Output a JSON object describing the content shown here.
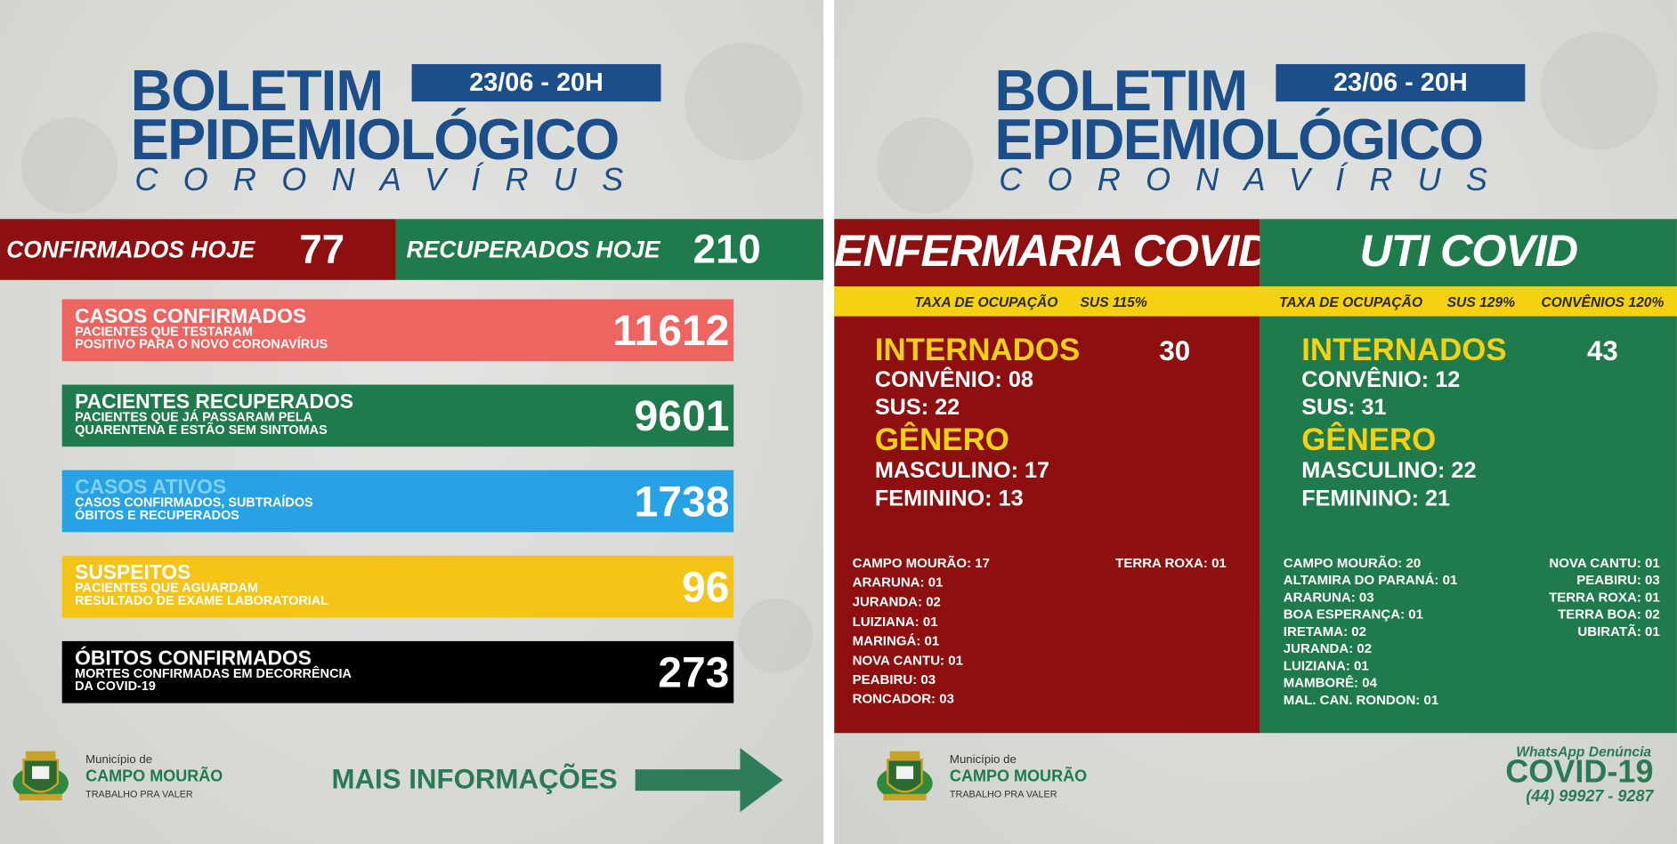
{
  "left": {
    "header": {
      "title": "BOLETIM",
      "title_line2": "EPIDEMIOLÓGICO",
      "subtitle": "CORONAVÍRUS",
      "date": "23/06 - 20H"
    },
    "today": [
      {
        "label": "CONFIRMADOS HOJE",
        "value": 77
      },
      {
        "label": "RECUPERADOS HOJE",
        "value": 210
      }
    ],
    "cards": [
      {
        "title": "CASOS CONFIRMADOS",
        "description": [
          "PACIENTES QUE TESTARAM",
          "POSITIVO PARA O NOVO CORONAVÍRUS"
        ],
        "value": 11612
      },
      {
        "title": "PACIENTES RECUPERADOS",
        "description": [
          "PACIENTES QUE JÁ PASSARAM PELA",
          "QUARENTENA E ESTÃO SEM SINTOMAS"
        ],
        "value": 9601
      },
      {
        "title": "CASOS ATIVOS",
        "description": [
          "CASOS CONFIRMADOS, SUBTRAÍDOS",
          "ÓBITOS E RECUPERADOS"
        ],
        "value": 1738
      },
      {
        "title": "SUSPEITOS",
        "description": [
          "PACIENTES QUE AGUARDAM",
          "RESULTADO DE EXAME LABORATORIAL"
        ],
        "value": 96
      },
      {
        "title": "ÓBITOS CONFIRMADOS",
        "description": [
          "MORTES CONFIRMADAS EM DECORRÊNCIA",
          "DA COVID-19"
        ],
        "value": 273
      }
    ],
    "footer": {
      "municipality_label": "Município de",
      "municipality": "CAMPO MOURÃO",
      "slogan": "TRABALHO PRA VALER",
      "more_info": "MAIS INFORMAÇÕES"
    }
  },
  "right": {
    "header": {
      "title": "BOLETIM",
      "title_line2": "EPIDEMIOLÓGICO",
      "subtitle": "CORONAVÍRUS",
      "date": "23/06 - 20H"
    },
    "wards": [
      {
        "title": "ENFERMARIA COVID",
        "occupancy": [
          "TAXA DE OCUPAÇÃO",
          "SUS 115%"
        ],
        "admitted_label": "INTERNADOS",
        "admitted": 30,
        "admitted_breakdown": [
          "CONVÊNIO: 08",
          "SUS: 22"
        ],
        "gender_label": "GÊNERO",
        "gender": [
          "MASCULINO: 17",
          "FEMININO: 13"
        ],
        "cities": [
          [
            "CAMPO MOURÃO: 17",
            "ARARUNA: 01",
            "JURANDA: 02",
            "LUIZIANA: 01",
            "MARINGÁ: 01",
            "NOVA CANTU: 01",
            "PEABIRU: 03",
            "RONCADOR: 03"
          ],
          [
            "TERRA ROXA: 01"
          ]
        ]
      },
      {
        "title": "UTI COVID",
        "occupancy": [
          "TAXA DE OCUPAÇÃO",
          "SUS 129%",
          "CONVÊNIOS 120%"
        ],
        "admitted_label": "INTERNADOS",
        "admitted": 43,
        "admitted_breakdown": [
          "CONVÊNIO: 12",
          "SUS: 31"
        ],
        "gender_label": "GÊNERO",
        "gender": [
          "MASCULINO: 22",
          "FEMININO: 21"
        ],
        "cities": [
          [
            "CAMPO MOURÃO: 20",
            "ALTAMIRA DO PARANÁ: 01",
            "ARARUNA: 03",
            "BOA ESPERANÇA: 01",
            "IRETAMA: 02",
            "JURANDA: 02",
            "LUIZIANA: 01",
            "MAMBORÊ: 04",
            "MAL. CAN. RONDON: 01"
          ],
          [
            "NOVA CANTU: 01",
            "PEABIRU: 03",
            "TERRA ROXA: 01",
            "TERRA BOA: 02",
            "UBIRATÃ: 01"
          ]
        ]
      }
    ],
    "footer": {
      "municipality_label": "Município de",
      "municipality": "CAMPO MOURÃO",
      "slogan": "TRABALHO PRA VALER",
      "whatsapp": "WhatsApp Denúncia",
      "hotline_title": "COVID-19",
      "phone": "(44) 99927 - 9287"
    }
  }
}
